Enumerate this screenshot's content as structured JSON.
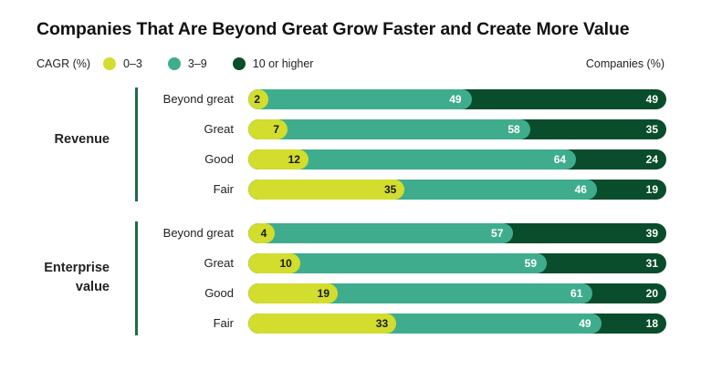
{
  "title": "Companies That Are Beyond Great Grow Faster and Create More Value",
  "colors": {
    "low": "#d2dd2e",
    "mid": "#3fad8d",
    "high": "#0a4d2c"
  },
  "legend": {
    "label": "CAGR (%)",
    "items": [
      {
        "text": "0–3",
        "color": "#d2dd2e"
      },
      {
        "text": "3–9",
        "color": "#3fad8d"
      },
      {
        "text": "10 or higher",
        "color": "#0a4d2c"
      }
    ],
    "unit": "Companies (%)"
  },
  "chart_data": {
    "type": "bar",
    "orientation": "horizontal",
    "stacked": true,
    "title": "Companies That Are Beyond Great Grow Faster and Create More Value",
    "legend_title": "CAGR (%)",
    "xlabel": "Companies (%)",
    "xlim": [
      0,
      100
    ],
    "series_names": [
      "0–3",
      "3–9",
      "10 or higher"
    ],
    "groups": [
      {
        "name": "Revenue",
        "rows": [
          {
            "label": "Beyond great",
            "values": [
              2,
              49,
              49
            ]
          },
          {
            "label": "Great",
            "values": [
              7,
              58,
              35
            ]
          },
          {
            "label": "Good",
            "values": [
              12,
              64,
              24
            ]
          },
          {
            "label": "Fair",
            "values": [
              35,
              46,
              19
            ]
          }
        ]
      },
      {
        "name": "Enterprise value",
        "rows": [
          {
            "label": "Beyond great",
            "values": [
              4,
              57,
              39
            ]
          },
          {
            "label": "Great",
            "values": [
              10,
              59,
              31
            ]
          },
          {
            "label": "Good",
            "values": [
              19,
              61,
              20
            ]
          },
          {
            "label": "Fair",
            "values": [
              33,
              49,
              18
            ]
          }
        ]
      }
    ]
  }
}
